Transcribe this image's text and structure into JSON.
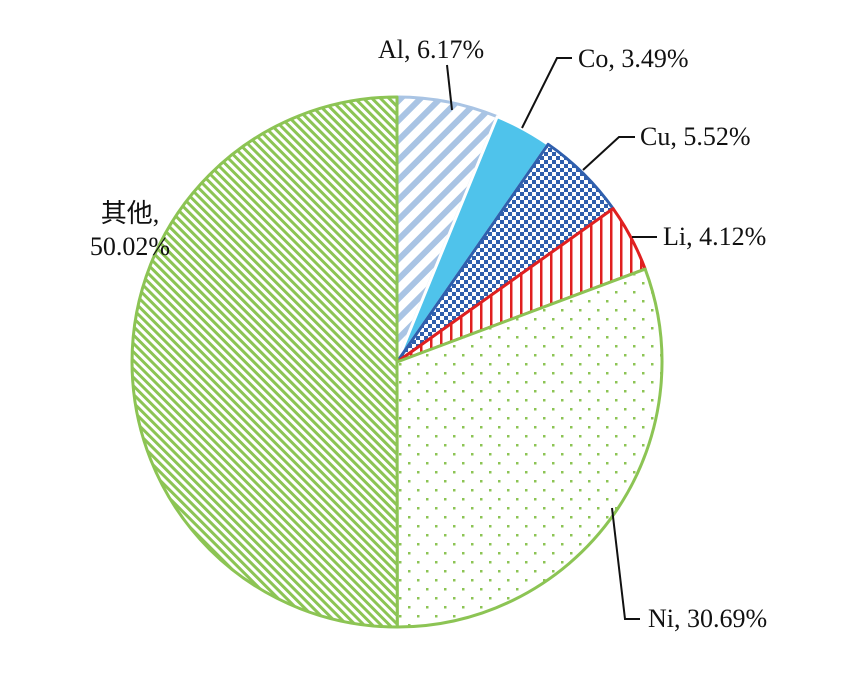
{
  "chart_data": {
    "type": "pie",
    "title": "",
    "slices": [
      {
        "label": "Al",
        "label_text": "Al, 6.17%",
        "value": 6.17,
        "color": "#a9c4e4",
        "edge": "#a9c4e4",
        "pattern": "diagonal-stripes"
      },
      {
        "label": "Co",
        "label_text": "Co, 3.49%",
        "value": 3.49,
        "color": "#4fc3eb",
        "edge": "#ffffff",
        "pattern": "solid"
      },
      {
        "label": "Cu",
        "label_text": "Cu, 5.52%",
        "value": 5.52,
        "color": "#2f5fad",
        "edge": "#2f5fad",
        "pattern": "checkerboard"
      },
      {
        "label": "Li",
        "label_text": "Li, 4.12%",
        "value": 4.12,
        "color": "#e02020",
        "edge": "#e02020",
        "pattern": "vertical-stripes"
      },
      {
        "label": "Ni",
        "label_text": "Ni, 30.69%",
        "value": 30.69,
        "color": "#8cc454",
        "edge": "#8cc454",
        "pattern": "dots"
      },
      {
        "label": "其他",
        "label_text": [
          "其他,",
          "50.02%"
        ],
        "value": 50.02,
        "color": "#8cc454",
        "edge": "#8cc454",
        "pattern": "fine-diagonal"
      }
    ],
    "start_angle": "12 o'clock",
    "direction": "clockwise",
    "legend": "none"
  }
}
